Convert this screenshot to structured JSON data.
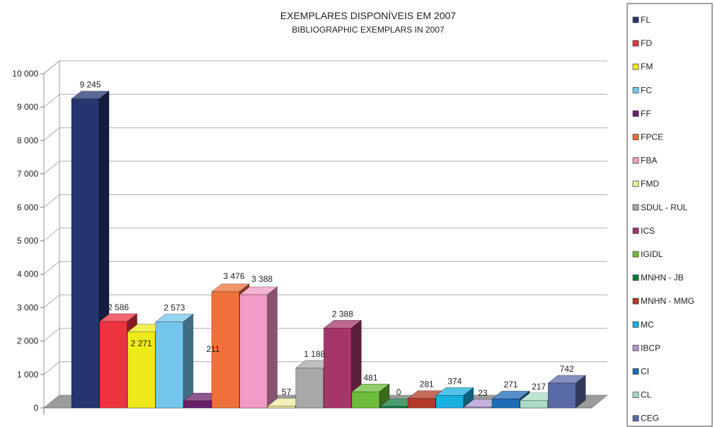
{
  "chart_data": {
    "type": "bar",
    "title": "EXEMPLARES DISPONÍVEIS EM 2007",
    "subtitle": "BIBLIOGRAPHIC EXEMPLARS IN 2007",
    "xlabel": "",
    "ylabel": "",
    "ylim": [
      0,
      10000
    ],
    "yticks": [
      {
        "value": 0,
        "label": "0"
      },
      {
        "value": 1000,
        "label": "1 000"
      },
      {
        "value": 2000,
        "label": "2 000"
      },
      {
        "value": 3000,
        "label": "3 000"
      },
      {
        "value": 4000,
        "label": "4 000"
      },
      {
        "value": 5000,
        "label": "5 000"
      },
      {
        "value": 6000,
        "label": "6 000"
      },
      {
        "value": 7000,
        "label": "7 000"
      },
      {
        "value": 8000,
        "label": "8 000"
      },
      {
        "value": 9000,
        "label": "9 000"
      },
      {
        "value": 10000,
        "label": "10 000"
      }
    ],
    "grid": true,
    "legend_position": "right",
    "series": [
      {
        "name": "FL",
        "value": 9245,
        "label": "9 245",
        "color": "#263570"
      },
      {
        "name": "FD",
        "value": 2586,
        "label": "2 586",
        "color": "#ee3340"
      },
      {
        "name": "FM",
        "value": 2271,
        "label": "2 271",
        "color": "#eeea1a"
      },
      {
        "name": "FC",
        "value": 2573,
        "label": "2 573",
        "color": "#74c6ec"
      },
      {
        "name": "FF",
        "value": 211,
        "label": "211",
        "color": "#6a1f6a"
      },
      {
        "name": "FPCE",
        "value": 3476,
        "label": "3 476",
        "color": "#f0703a"
      },
      {
        "name": "FBA",
        "value": 3388,
        "label": "3 388",
        "color": "#f39ac6"
      },
      {
        "name": "FMD",
        "value": 57,
        "label": "57",
        "color": "#eeeaa0"
      },
      {
        "name": "SDUL - RUL",
        "value": 1188,
        "label": "1 188",
        "color": "#a8a8a8"
      },
      {
        "name": "ICS",
        "value": 2388,
        "label": "2 388",
        "color": "#a6356a"
      },
      {
        "name": "IGIDL",
        "value": 481,
        "label": "481",
        "color": "#6cbd3a"
      },
      {
        "name": "MNHN - JB",
        "value": 0,
        "label": "0",
        "color": "#0d7a3e"
      },
      {
        "name": "MNHN - MMG",
        "value": 281,
        "label": "281",
        "color": "#b5392a"
      },
      {
        "name": "MC",
        "value": 374,
        "label": "374",
        "color": "#1ab0df"
      },
      {
        "name": "IBCP",
        "value": 23,
        "label": "23",
        "color": "#b097d3"
      },
      {
        "name": "CI",
        "value": 271,
        "label": "271",
        "color": "#1d6bb5"
      },
      {
        "name": "CL",
        "value": 217,
        "label": "217",
        "color": "#a8dbc3"
      },
      {
        "name": "CEG",
        "value": 742,
        "label": "742",
        "color": "#5a6aa8"
      }
    ]
  }
}
